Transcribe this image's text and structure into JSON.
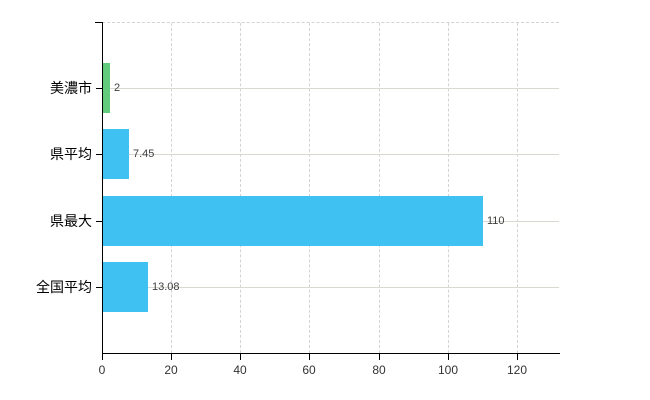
{
  "chart_data": {
    "type": "bar",
    "orientation": "horizontal",
    "title": "",
    "categories": [
      "美濃市",
      "県平均",
      "県最大",
      "全国平均"
    ],
    "values": [
      2,
      7.45,
      110,
      13.08
    ],
    "value_labels": [
      "2",
      "7.45",
      "110",
      "13.08"
    ],
    "bar_colors": [
      "#63cc7c",
      "#3fc1f1",
      "#3fc1f1",
      "#3fc1f1"
    ],
    "x_tick_values": [
      0,
      20,
      40,
      60,
      80,
      100,
      120
    ],
    "x_tick_labels": [
      "0",
      "20",
      "40",
      "60",
      "80",
      "100",
      "120"
    ],
    "xlim": [
      0,
      132.2
    ],
    "xlabel": "",
    "ylabel": "",
    "grid": true,
    "legend": false,
    "background": "#ffffff",
    "axis_color": "#000000",
    "vgrid_color": "#d6d1d3",
    "hgrid_color": "#d9d9d2",
    "value_label_color": "#3d3d3d",
    "tick_label_color": "#333333",
    "category_label_color": "#000000"
  }
}
